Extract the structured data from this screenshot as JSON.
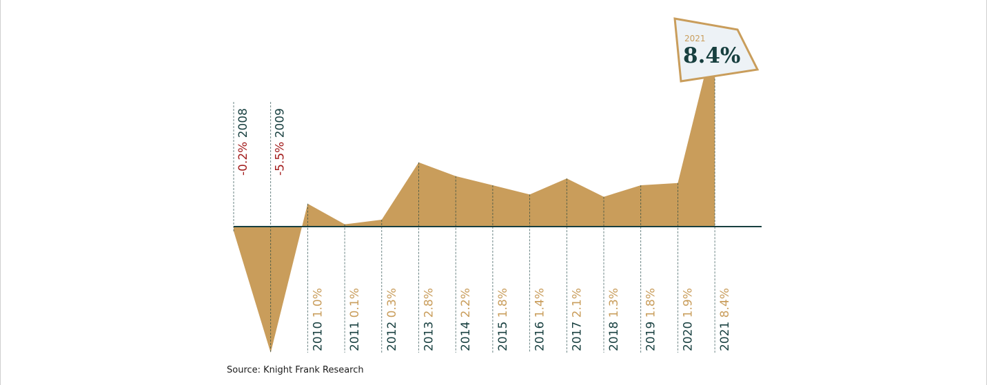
{
  "chart_data": {
    "type": "area",
    "years": [
      "2008",
      "2009",
      "2010",
      "2011",
      "2012",
      "2013",
      "2014",
      "2015",
      "2016",
      "2017",
      "2018",
      "2019",
      "2020",
      "2021"
    ],
    "values": [
      -0.2,
      -5.5,
      1.0,
      0.1,
      0.3,
      2.8,
      2.2,
      1.8,
      1.4,
      2.1,
      1.3,
      1.8,
      1.9,
      8.4
    ],
    "labels": [
      "-0.2%",
      "-5.5%",
      "1.0%",
      "0.1%",
      "0.3%",
      "2.8%",
      "2.2%",
      "1.8%",
      "1.4%",
      "2.1%",
      "1.3%",
      "1.8%",
      "1.9%",
      "8.4%"
    ],
    "callout": {
      "year": "2021",
      "value": "8.4%"
    },
    "title": "",
    "xlabel": "",
    "ylabel": "",
    "colors": {
      "fill": "#c99d5b",
      "axis": "#173f3f",
      "negative": "#a31d1d",
      "positive_label": "#c99d5b",
      "year_label": "#173f3f",
      "callout_bg": "#edf2f6"
    }
  },
  "source": "Source: Knight Frank Research"
}
